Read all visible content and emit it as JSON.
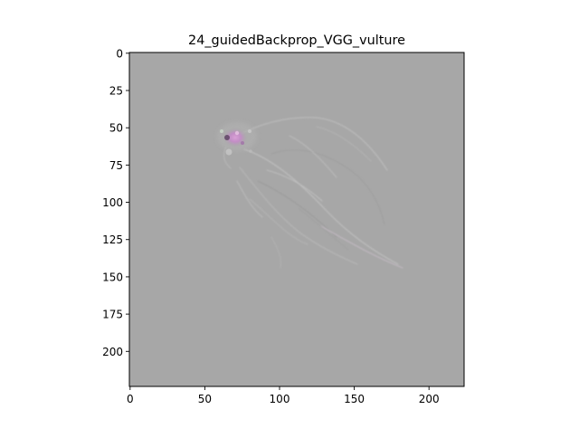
{
  "chart_data": {
    "type": "heatmap",
    "title": "24_guidedBackprop_VGG_vulture",
    "xlabel": "",
    "ylabel": "",
    "xlim": [
      0,
      224
    ],
    "ylim": [
      224,
      0
    ],
    "x_ticks": [
      0,
      50,
      100,
      150,
      200
    ],
    "y_ticks": [
      0,
      25,
      50,
      75,
      100,
      125,
      150,
      175,
      200
    ],
    "x_tick_labels": [
      "0",
      "50",
      "100",
      "150",
      "200"
    ],
    "y_tick_labels": [
      "0",
      "25",
      "50",
      "75",
      "100",
      "125",
      "150",
      "175",
      "200"
    ],
    "grid": false,
    "image_background": "#a7a7a7",
    "highlight_color": "#c890c8",
    "highlight_center": {
      "x": 70,
      "y": 57
    }
  }
}
